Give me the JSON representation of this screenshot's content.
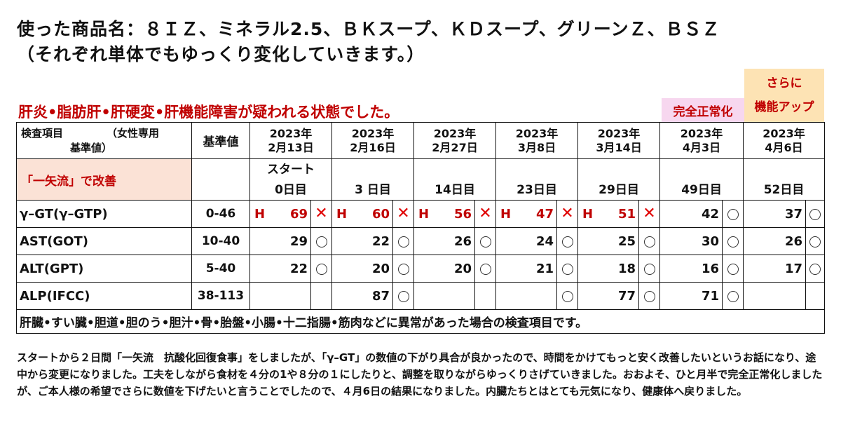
{
  "heading": {
    "line1": "使った商品名：８ＩＺ、ミネラル2.5、ＢＫスープ、ＫＤスープ、グリーンＺ、ＢＳＺ",
    "line2": "（それぞれ単体でもゆっくり変化していきます。）"
  },
  "warning": "肝炎•脂肪肝•肝硬変•肝機能障害が疑われる状態でした。",
  "badges": {
    "normalized": "完全正常化",
    "further_line1": "さらに",
    "further_line2": "機能アップ",
    "normalized_bg": "#f7d7ef",
    "further_bg": "#fde3b4"
  },
  "table": {
    "header_item": "検査項目",
    "header_female": "（女性専用",
    "header_basis": "基準値）",
    "header_ref": "基準値",
    "program": "「一矢流」で改善",
    "dates": [
      {
        "year": "2023年",
        "date": "2月13日",
        "start": "スタート",
        "day": "0日目"
      },
      {
        "year": "2023年",
        "date": "2月16日",
        "start": "",
        "day": "3 日目"
      },
      {
        "year": "2023年",
        "date": "2月27日",
        "start": "",
        "day": "14日目"
      },
      {
        "year": "2023年",
        "date": "3月8日",
        "start": "",
        "day": "23日目"
      },
      {
        "year": "2023年",
        "date": "3月14日",
        "start": "",
        "day": "29日目"
      },
      {
        "year": "2023年",
        "date": "4月3日",
        "start": "",
        "day": "49日目"
      },
      {
        "year": "2023年",
        "date": "4月6日",
        "start": "",
        "day": "52日目"
      }
    ],
    "rows": [
      {
        "name": "γ–GT(γ–GTP)",
        "ref": "0-46",
        "cells": [
          {
            "flag": "H",
            "value": "69",
            "mark": "x"
          },
          {
            "flag": "H",
            "value": "60",
            "mark": "x"
          },
          {
            "flag": "H",
            "value": "56",
            "mark": "x"
          },
          {
            "flag": "H",
            "value": "47",
            "mark": "x"
          },
          {
            "flag": "H",
            "value": "51",
            "mark": "x"
          },
          {
            "flag": "",
            "value": "42",
            "mark": "o"
          },
          {
            "flag": "",
            "value": "37",
            "mark": "o"
          }
        ]
      },
      {
        "name": "AST(GOT)",
        "ref": "10-40",
        "cells": [
          {
            "flag": "",
            "value": "29",
            "mark": "o"
          },
          {
            "flag": "",
            "value": "22",
            "mark": "o"
          },
          {
            "flag": "",
            "value": "26",
            "mark": "o"
          },
          {
            "flag": "",
            "value": "24",
            "mark": "o"
          },
          {
            "flag": "",
            "value": "25",
            "mark": "o"
          },
          {
            "flag": "",
            "value": "30",
            "mark": "o"
          },
          {
            "flag": "",
            "value": "26",
            "mark": "o"
          }
        ]
      },
      {
        "name": "ALT(GPT)",
        "ref": "5-40",
        "cells": [
          {
            "flag": "",
            "value": "22",
            "mark": "o"
          },
          {
            "flag": "",
            "value": "20",
            "mark": "o"
          },
          {
            "flag": "",
            "value": "20",
            "mark": "o"
          },
          {
            "flag": "",
            "value": "21",
            "mark": "o"
          },
          {
            "flag": "",
            "value": "18",
            "mark": "o"
          },
          {
            "flag": "",
            "value": "16",
            "mark": "o"
          },
          {
            "flag": "",
            "value": "17",
            "mark": "o"
          }
        ]
      },
      {
        "name": "ALP(IFCC)",
        "ref": "38-113",
        "cells": [
          {
            "flag": "",
            "value": "",
            "mark": ""
          },
          {
            "flag": "",
            "value": "87",
            "mark": "o"
          },
          {
            "flag": "",
            "value": "",
            "mark": ""
          },
          {
            "flag": "",
            "value": "",
            "mark": "o"
          },
          {
            "flag": "",
            "value": "77",
            "mark": "o"
          },
          {
            "flag": "",
            "value": "71",
            "mark": "o"
          },
          {
            "flag": "",
            "value": "",
            "mark": ""
          }
        ]
      }
    ],
    "note": "肝臓•すい臓•胆道•胆のう•胆汁•骨•胎盤•小腸•十二指腸•筋肉などに異常があった場合の検査項目です。"
  },
  "paragraph": "スタートから２日間「一矢流　抗酸化回復食事」をしましたが、「γ–GT」の数値の下がり具合が良かったので、時間をかけてもっと安く改善したいというお話になり、途中から変更になりました。工夫をしながら食材を４分の1や８分の１にしたりと、調整を取りながらゆっくりさげていきました。おおよそ、ひと月半で完全正常化しましたが、ご本人様の希望でさらに数値を下げたいと言うことでしたので、４月6日の結果になりました。内臓たちとはとても元気になり、健康体へ戻りました。"
}
